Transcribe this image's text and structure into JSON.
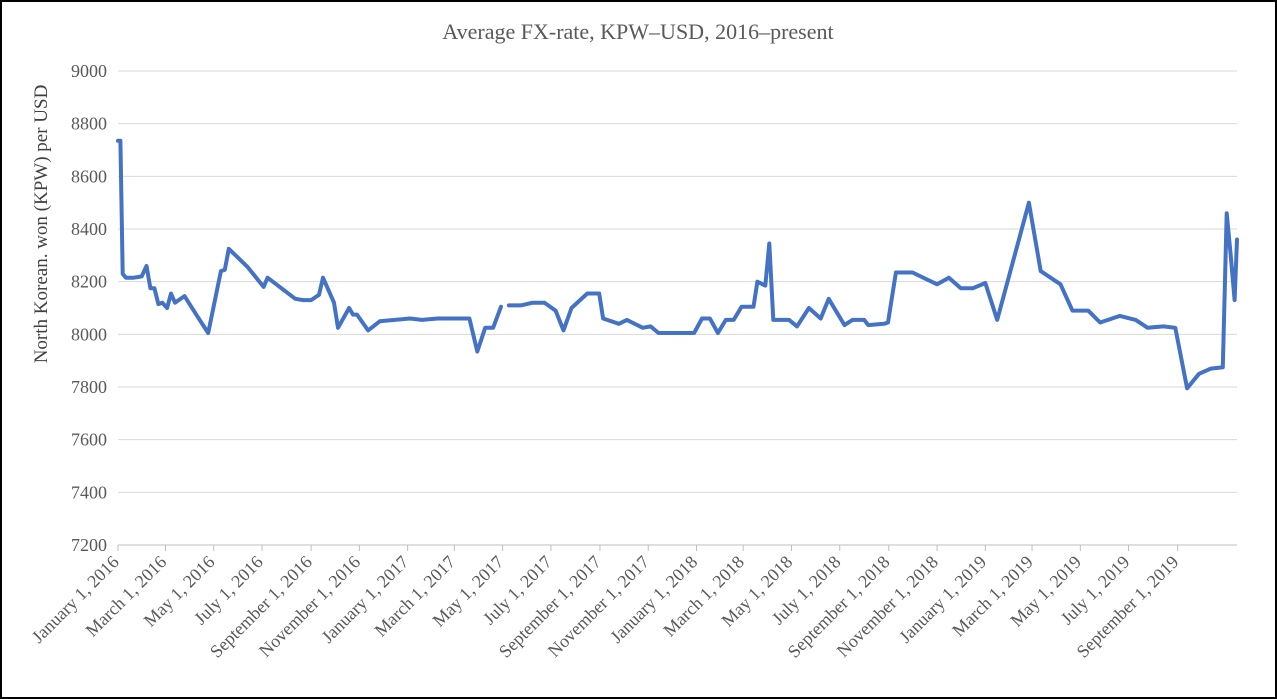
{
  "chart_data": {
    "type": "line",
    "title": "Average FX-rate, KPW–USD, 2016–present",
    "xlabel": "",
    "ylabel": "North Korean. won (KPW) per USD",
    "ylim": [
      7200,
      9000
    ],
    "yticks": [
      7200,
      7400,
      7600,
      7800,
      8000,
      8200,
      8400,
      8600,
      8800,
      9000
    ],
    "xlim": [
      "2016-01-01",
      "2019-11-15"
    ],
    "xticks": [
      {
        "date": "2016-01-01",
        "label": "January 1, 2016"
      },
      {
        "date": "2016-03-01",
        "label": "March 1, 2016"
      },
      {
        "date": "2016-05-01",
        "label": "May 1, 2016"
      },
      {
        "date": "2016-07-01",
        "label": "July 1, 2016"
      },
      {
        "date": "2016-09-01",
        "label": "September 1, 2016"
      },
      {
        "date": "2016-11-01",
        "label": "November 1, 2016"
      },
      {
        "date": "2017-01-01",
        "label": "January 1, 2017"
      },
      {
        "date": "2017-03-01",
        "label": "March 1, 2017"
      },
      {
        "date": "2017-05-01",
        "label": "May 1, 2017"
      },
      {
        "date": "2017-07-01",
        "label": "July 1, 2017"
      },
      {
        "date": "2017-09-01",
        "label": "September 1, 2017"
      },
      {
        "date": "2017-11-01",
        "label": "November 1, 2017"
      },
      {
        "date": "2018-01-01",
        "label": "January 1, 2018"
      },
      {
        "date": "2018-03-01",
        "label": "March 1, 2018"
      },
      {
        "date": "2018-05-01",
        "label": "May 1, 2018"
      },
      {
        "date": "2018-07-01",
        "label": "July 1, 2018"
      },
      {
        "date": "2018-09-01",
        "label": "September 1, 2018"
      },
      {
        "date": "2018-11-01",
        "label": "November 1, 2018"
      },
      {
        "date": "2019-01-01",
        "label": "January 1, 2019"
      },
      {
        "date": "2019-03-01",
        "label": "March 1, 2019"
      },
      {
        "date": "2019-05-01",
        "label": "May 1, 2019"
      },
      {
        "date": "2019-07-01",
        "label": "July 1, 2019"
      },
      {
        "date": "2019-09-01",
        "label": "September 1, 2019"
      }
    ],
    "grid": true,
    "legend": "none",
    "series": [
      {
        "color": "#4472c4",
        "segments": [
          [
            {
              "x": "2016-01-01",
              "y": 8735
            },
            {
              "x": "2016-01-04",
              "y": 8735
            },
            {
              "x": "2016-01-07",
              "y": 8230
            },
            {
              "x": "2016-01-11",
              "y": 8215
            },
            {
              "x": "2016-01-21",
              "y": 8215
            },
            {
              "x": "2016-01-31",
              "y": 8220
            },
            {
              "x": "2016-02-06",
              "y": 8260
            },
            {
              "x": "2016-02-11",
              "y": 8175
            },
            {
              "x": "2016-02-16",
              "y": 8175
            },
            {
              "x": "2016-02-21",
              "y": 8115
            },
            {
              "x": "2016-02-26",
              "y": 8120
            },
            {
              "x": "2016-03-03",
              "y": 8100
            },
            {
              "x": "2016-03-08",
              "y": 8155
            },
            {
              "x": "2016-03-13",
              "y": 8120
            },
            {
              "x": "2016-03-25",
              "y": 8145
            },
            {
              "x": "2016-04-11",
              "y": 8065
            },
            {
              "x": "2016-04-24",
              "y": 8005
            },
            {
              "x": "2016-05-10",
              "y": 8240
            },
            {
              "x": "2016-05-15",
              "y": 8245
            },
            {
              "x": "2016-05-20",
              "y": 8325
            },
            {
              "x": "2016-06-13",
              "y": 8255
            },
            {
              "x": "2016-07-03",
              "y": 8180
            },
            {
              "x": "2016-07-08",
              "y": 8215
            },
            {
              "x": "2016-08-12",
              "y": 8135
            },
            {
              "x": "2016-08-22",
              "y": 8130
            },
            {
              "x": "2016-09-01",
              "y": 8130
            },
            {
              "x": "2016-09-11",
              "y": 8150
            },
            {
              "x": "2016-09-16",
              "y": 8215
            },
            {
              "x": "2016-09-30",
              "y": 8120
            },
            {
              "x": "2016-10-05",
              "y": 8025
            },
            {
              "x": "2016-10-19",
              "y": 8100
            },
            {
              "x": "2016-10-24",
              "y": 8075
            },
            {
              "x": "2016-10-29",
              "y": 8075
            },
            {
              "x": "2016-11-12",
              "y": 8015
            },
            {
              "x": "2016-11-27",
              "y": 8050
            },
            {
              "x": "2017-01-04",
              "y": 8060
            },
            {
              "x": "2017-01-19",
              "y": 8055
            },
            {
              "x": "2017-02-08",
              "y": 8060
            },
            {
              "x": "2017-03-20",
              "y": 8060
            },
            {
              "x": "2017-03-30",
              "y": 7935
            },
            {
              "x": "2017-04-09",
              "y": 8025
            },
            {
              "x": "2017-04-19",
              "y": 8025
            },
            {
              "x": "2017-04-29",
              "y": 8105
            }
          ],
          [
            {
              "x": "2017-05-09",
              "y": 8110
            },
            {
              "x": "2017-05-24",
              "y": 8110
            },
            {
              "x": "2017-06-08",
              "y": 8120
            },
            {
              "x": "2017-06-23",
              "y": 8120
            },
            {
              "x": "2017-07-07",
              "y": 8090
            },
            {
              "x": "2017-07-17",
              "y": 8015
            },
            {
              "x": "2017-07-27",
              "y": 8100
            },
            {
              "x": "2017-08-16",
              "y": 8155
            },
            {
              "x": "2017-08-31",
              "y": 8155
            },
            {
              "x": "2017-09-05",
              "y": 8060
            },
            {
              "x": "2017-09-25",
              "y": 8040
            },
            {
              "x": "2017-10-05",
              "y": 8055
            },
            {
              "x": "2017-10-25",
              "y": 8025
            },
            {
              "x": "2017-11-04",
              "y": 8030
            },
            {
              "x": "2017-11-14",
              "y": 8005
            },
            {
              "x": "2017-12-04",
              "y": 8005
            },
            {
              "x": "2017-12-29",
              "y": 8005
            },
            {
              "x": "2018-01-08",
              "y": 8060
            },
            {
              "x": "2018-01-18",
              "y": 8060
            },
            {
              "x": "2018-01-28",
              "y": 8005
            },
            {
              "x": "2018-02-07",
              "y": 8055
            },
            {
              "x": "2018-02-17",
              "y": 8055
            },
            {
              "x": "2018-02-27",
              "y": 8105
            },
            {
              "x": "2018-03-14",
              "y": 8105
            },
            {
              "x": "2018-03-19",
              "y": 8200
            },
            {
              "x": "2018-03-29",
              "y": 8185
            },
            {
              "x": "2018-04-03",
              "y": 8345
            },
            {
              "x": "2018-04-08",
              "y": 8055
            },
            {
              "x": "2018-04-28",
              "y": 8055
            },
            {
              "x": "2018-05-08",
              "y": 8030
            },
            {
              "x": "2018-05-23",
              "y": 8100
            },
            {
              "x": "2018-06-07",
              "y": 8060
            },
            {
              "x": "2018-06-17",
              "y": 8135
            },
            {
              "x": "2018-07-07",
              "y": 8035
            },
            {
              "x": "2018-07-17",
              "y": 8055
            },
            {
              "x": "2018-08-01",
              "y": 8055
            },
            {
              "x": "2018-08-06",
              "y": 8035
            },
            {
              "x": "2018-08-26",
              "y": 8040
            },
            {
              "x": "2018-08-31",
              "y": 8045
            },
            {
              "x": "2018-09-10",
              "y": 8235
            },
            {
              "x": "2018-10-01",
              "y": 8235
            },
            {
              "x": "2018-11-01",
              "y": 8190
            },
            {
              "x": "2018-11-16",
              "y": 8215
            },
            {
              "x": "2018-12-01",
              "y": 8175
            },
            {
              "x": "2018-12-16",
              "y": 8175
            },
            {
              "x": "2019-01-01",
              "y": 8195
            },
            {
              "x": "2019-01-16",
              "y": 8055
            },
            {
              "x": "2019-02-25",
              "y": 8500
            },
            {
              "x": "2019-03-12",
              "y": 8240
            },
            {
              "x": "2019-04-06",
              "y": 8190
            },
            {
              "x": "2019-04-21",
              "y": 8090
            },
            {
              "x": "2019-05-11",
              "y": 8090
            },
            {
              "x": "2019-05-26",
              "y": 8045
            },
            {
              "x": "2019-06-20",
              "y": 8070
            },
            {
              "x": "2019-07-10",
              "y": 8055
            },
            {
              "x": "2019-07-25",
              "y": 8025
            },
            {
              "x": "2019-08-14",
              "y": 8030
            },
            {
              "x": "2019-08-29",
              "y": 8025
            },
            {
              "x": "2019-09-13",
              "y": 7795
            },
            {
              "x": "2019-09-28",
              "y": 7850
            },
            {
              "x": "2019-10-13",
              "y": 7870
            },
            {
              "x": "2019-10-28",
              "y": 7875
            },
            {
              "x": "2019-11-02",
              "y": 8460
            },
            {
              "x": "2019-11-07",
              "y": 8300
            },
            {
              "x": "2019-11-12",
              "y": 8130
            },
            {
              "x": "2019-11-15",
              "y": 8360
            }
          ]
        ]
      }
    ]
  }
}
